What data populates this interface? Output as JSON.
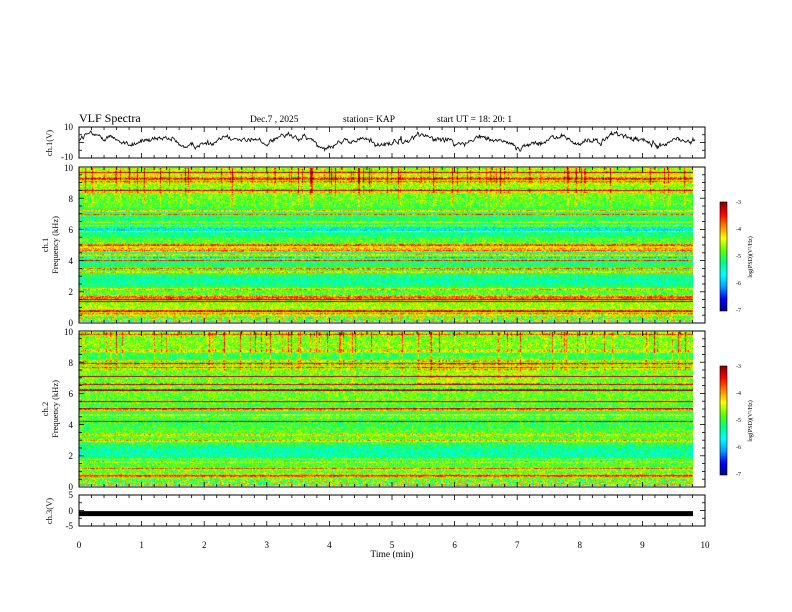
{
  "header": {
    "title": "VLF Spectra",
    "date": "Dec.7 , 2025",
    "station": "station= KAP",
    "start_ut": "start  UT  =   18: 20: 1"
  },
  "colors": {
    "spectrogram_palette": [
      "#000080",
      "#0000ff",
      "#00a0ff",
      "#00ffff",
      "#00ff80",
      "#60ff00",
      "#ffff00",
      "#ff8000",
      "#ff0000",
      "#800000"
    ],
    "trace": "#000000",
    "axes": "#000000"
  },
  "chart_data": [
    {
      "type": "line",
      "name": "ch1-waveform",
      "ylabel": "ch.1(V)",
      "ylim": [
        -10,
        10
      ],
      "yticks": [
        "10",
        "-10"
      ],
      "x_range_min": [
        0,
        9.85
      ],
      "description_values": "irregular fluctuating amplitude mostly between -4 and 6 V with spikes to ~10"
    },
    {
      "type": "heatmap",
      "name": "ch1-spectrogram",
      "ylabel": "ch.1\nFrequency (kHz)",
      "ylabel_line1": "ch.1",
      "ylabel_line2": "Frequency (kHz)",
      "ylim": [
        0,
        10
      ],
      "yticks": [
        "0",
        "2",
        "4",
        "6",
        "8",
        "10"
      ],
      "colorbar": {
        "label": "log(PSD)(V²/Hz)",
        "range": [
          -7,
          -3
        ],
        "ticks": [
          "-3",
          "-4",
          "-5",
          "-6",
          "-7"
        ]
      }
    },
    {
      "type": "heatmap",
      "name": "ch2-spectrogram",
      "ylabel_line1": "ch.2",
      "ylabel_line2": "Frequency (kHz)",
      "ylim": [
        0,
        10
      ],
      "yticks": [
        "0",
        "2",
        "4",
        "6",
        "8",
        "10"
      ],
      "colorbar": {
        "label": "log(PSD)(V²/Hz)",
        "range": [
          -7,
          -3
        ],
        "ticks": [
          "-3",
          "-4",
          "-5",
          "-6",
          "-7"
        ]
      }
    },
    {
      "type": "line",
      "name": "ch3-waveform",
      "ylabel": "ch.3(V)",
      "ylim": [
        -5,
        5
      ],
      "yticks": [
        "5",
        "0",
        "-5"
      ],
      "constant_value": -1
    }
  ],
  "xaxis": {
    "label": "Time  (min)",
    "xlim": [
      0,
      10
    ],
    "ticks": [
      "0",
      "1",
      "2",
      "3",
      "4",
      "5",
      "6",
      "7",
      "8",
      "9",
      "10"
    ]
  }
}
